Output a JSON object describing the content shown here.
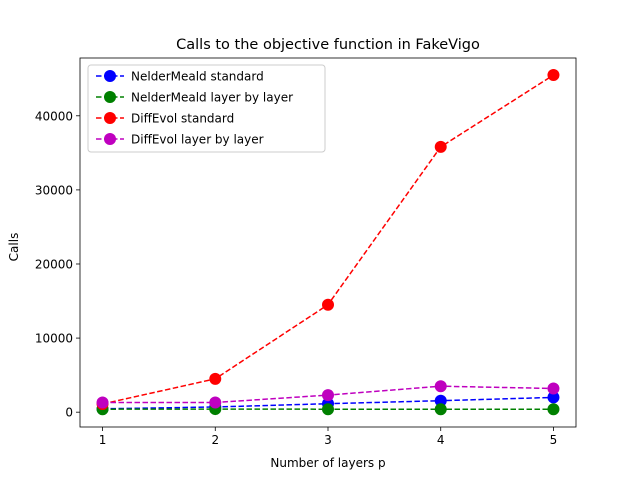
{
  "chart_data": {
    "type": "line",
    "title": "Calls to the objective function in FakeVigo",
    "xlabel": "Number of layers p",
    "ylabel": "Calls",
    "x": [
      1,
      2,
      3,
      4,
      5
    ],
    "xlim": [
      0.8,
      5.2
    ],
    "ylim": [
      -2000,
      47800
    ],
    "xticks": [
      1,
      2,
      3,
      4,
      5
    ],
    "yticks": [
      0,
      10000,
      20000,
      30000,
      40000
    ],
    "grid": false,
    "legend_position": "top-left",
    "series": [
      {
        "name": "NelderMeald standard",
        "color": "#0000ff",
        "values": [
          450,
          700,
          1150,
          1550,
          2000
        ]
      },
      {
        "name": "NelderMeald layer by layer",
        "color": "#008000",
        "values": [
          400,
          420,
          400,
          400,
          400
        ]
      },
      {
        "name": "DiffEvol standard",
        "color": "#ff0000",
        "values": [
          1100,
          4500,
          14500,
          35800,
          45500
        ]
      },
      {
        "name": "DiffEvol layer by layer",
        "color": "#bf00bf",
        "values": [
          1300,
          1300,
          2300,
          3500,
          3200
        ]
      }
    ]
  }
}
